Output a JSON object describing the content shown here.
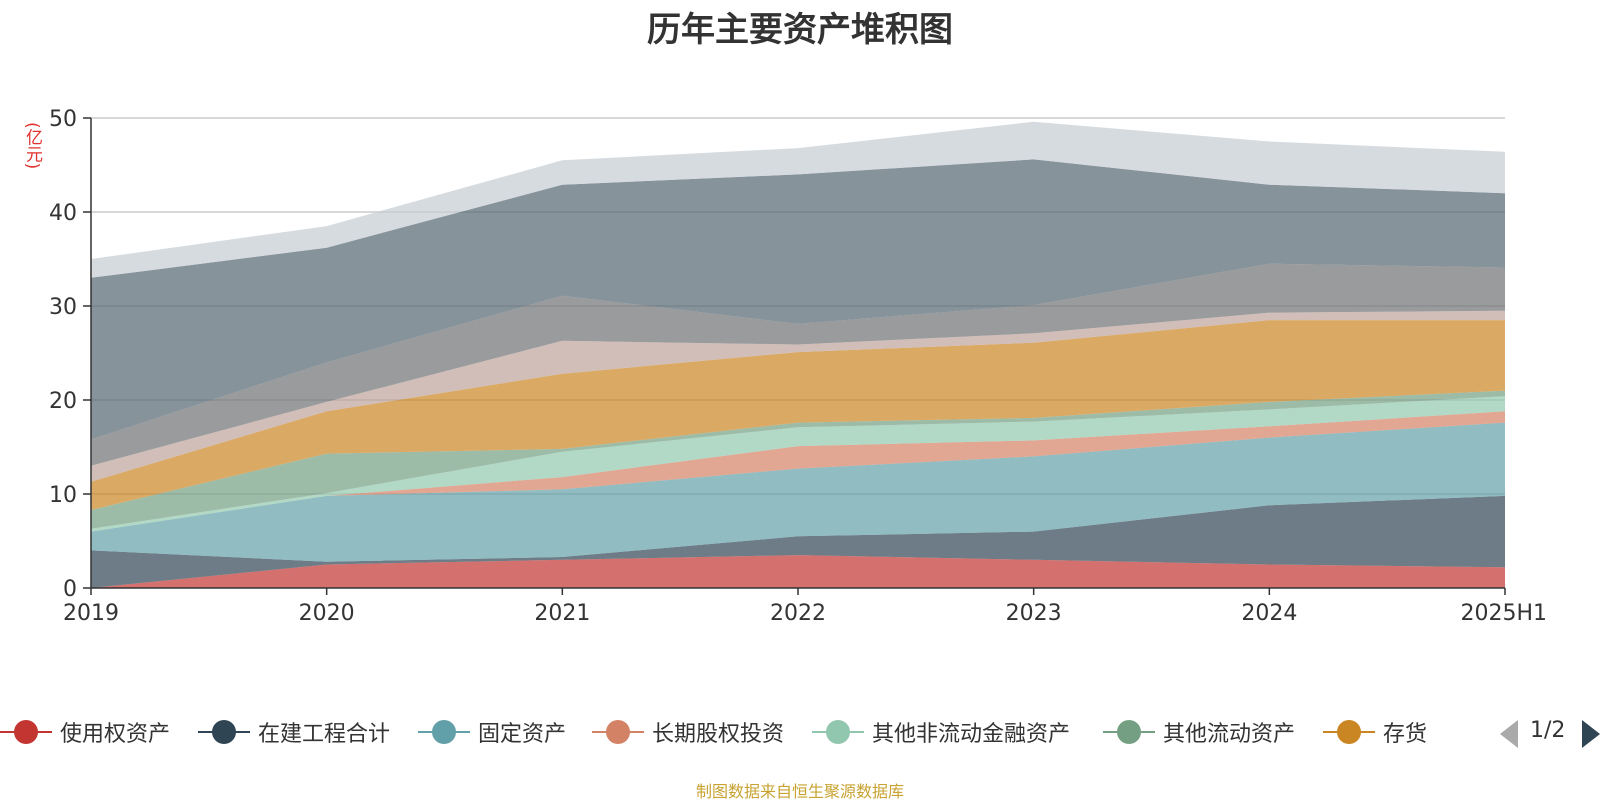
{
  "title": "历年主要资产堆积图",
  "unit_label": "(亿元)",
  "source": "制图数据来自恒生聚源数据库",
  "pager": {
    "text": "1/2"
  },
  "chart_data": {
    "type": "area",
    "stacked": true,
    "categories": [
      "2019",
      "2020",
      "2021",
      "2022",
      "2023",
      "2024",
      "2025H1"
    ],
    "ylim": [
      0,
      50
    ],
    "yticks": [
      "0",
      "10",
      "20",
      "30",
      "40",
      "50"
    ],
    "grid": true,
    "legend_position": "bottom",
    "series": [
      {
        "name": "使用权资产",
        "color": "#c23531",
        "values": [
          0,
          2.5,
          3,
          3.5,
          3,
          2.5,
          2.2
        ]
      },
      {
        "name": "在建工程合计",
        "color": "#2f4554",
        "values": [
          4,
          0.3,
          0.3,
          2,
          3,
          6.3,
          7.6
        ]
      },
      {
        "name": "固定资产",
        "color": "#61a0a8",
        "values": [
          2,
          7,
          7.2,
          7.2,
          8,
          7.2,
          7.8
        ]
      },
      {
        "name": "长期股权投资",
        "color": "#d48265",
        "values": [
          0,
          0,
          1.3,
          2.4,
          1.7,
          1.2,
          1.2
        ]
      },
      {
        "name": "其他非流动金融资产",
        "color": "#91c7ae",
        "values": [
          0.3,
          0.3,
          2.7,
          2,
          2,
          1.8,
          1.6
        ]
      },
      {
        "name": "其他流动资产",
        "color": "#749f83",
        "values": [
          2,
          4.2,
          0.3,
          0.5,
          0.4,
          0.8,
          0.6
        ]
      },
      {
        "name": "存货",
        "color": "#ca8622",
        "values": [
          3,
          4.5,
          8,
          7.5,
          8,
          8.7,
          7.5
        ]
      },
      {
        "name": "",
        "color": "#bda29a",
        "values": [
          1.7,
          1.0,
          3.5,
          0.8,
          1.0,
          0.8,
          1.0
        ]
      },
      {
        "name": "",
        "color": "#6e7074",
        "values": [
          2.8,
          4.2,
          4.8,
          2.2,
          3.0,
          5.2,
          4.6
        ]
      },
      {
        "name": "",
        "color": "#546570",
        "values": [
          17.2,
          12.2,
          11.8,
          15.9,
          15.5,
          8.4,
          7.9
        ]
      },
      {
        "name": "",
        "color": "#c4ccd3",
        "values": [
          2.0,
          2.3,
          2.6,
          2.8,
          4.0,
          4.6,
          4.4
        ]
      }
    ]
  }
}
